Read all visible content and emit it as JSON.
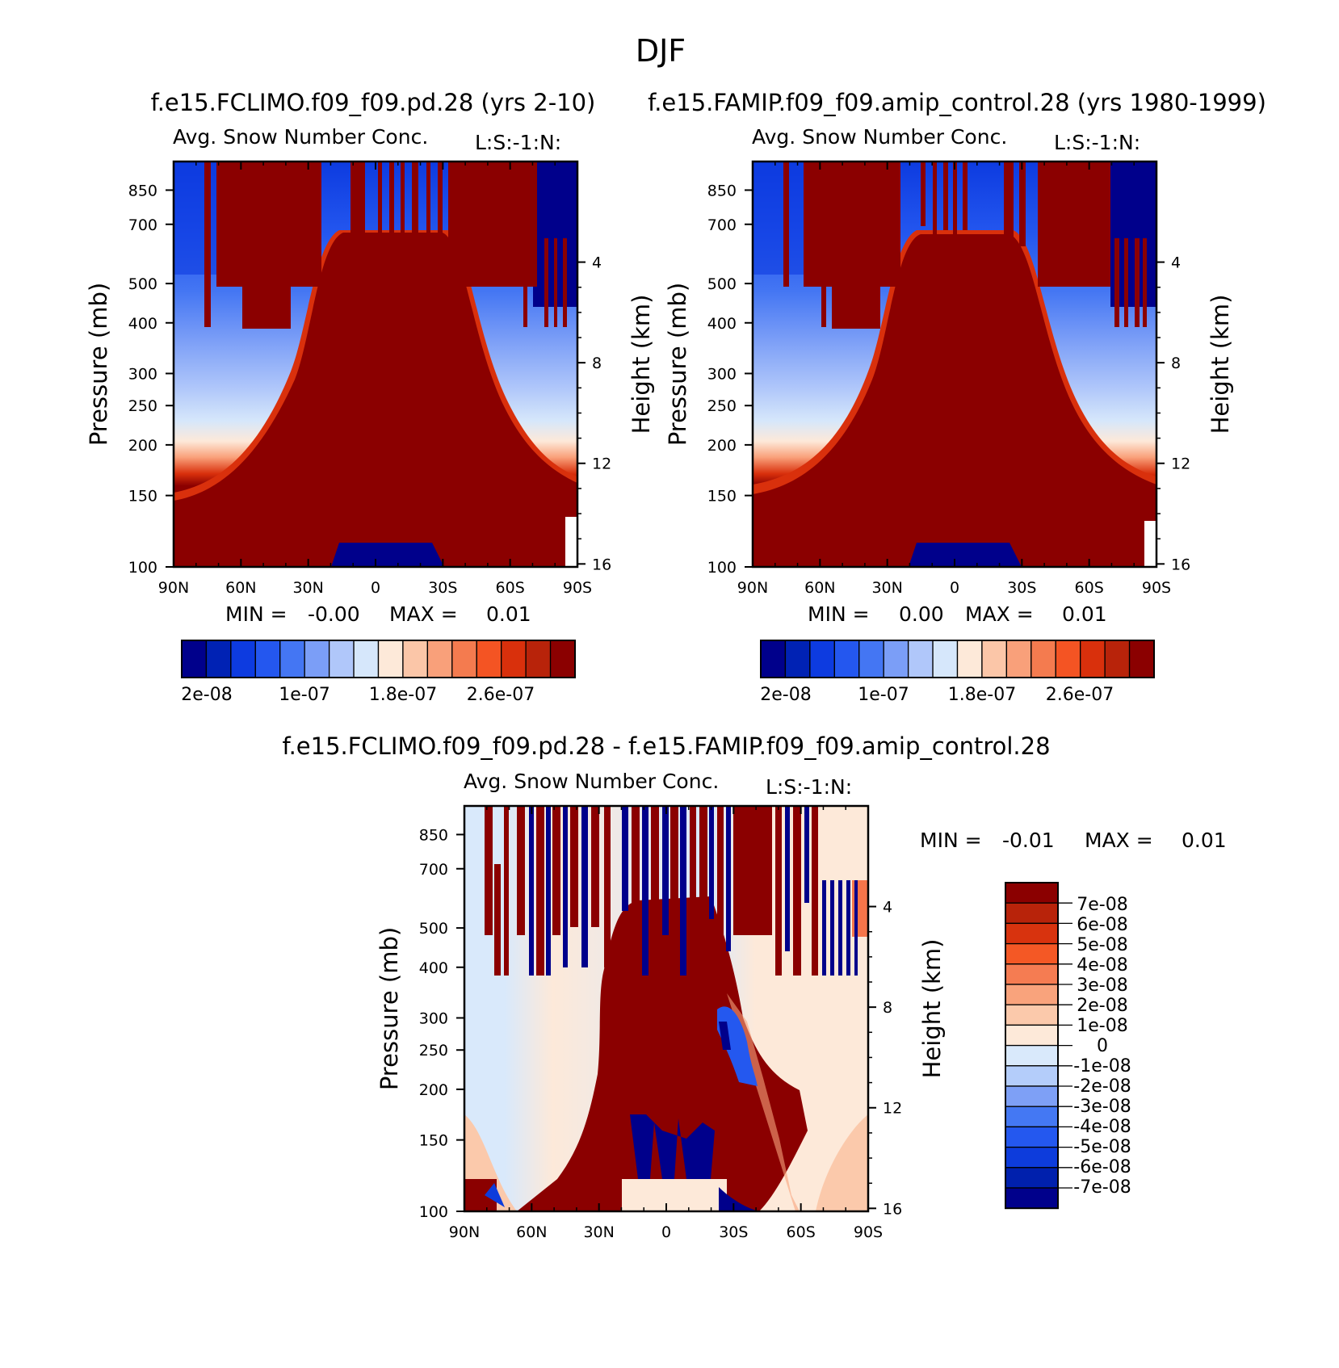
{
  "page_title": "DJF",
  "colors": {
    "cb_seq": [
      "#00008b",
      "#0022b4",
      "#0d3be0",
      "#2457ef",
      "#4476f3",
      "#7b9ef7",
      "#b0c7fa",
      "#d6e7fb",
      "#fde9d9",
      "#fbc6a8",
      "#f9a07a",
      "#f47b4f",
      "#f45423",
      "#d9300c",
      "#b8230a",
      "#8b0000"
    ],
    "cb_div": [
      "#00008b",
      "#0020ad",
      "#0d3cdc",
      "#2458ef",
      "#4478f3",
      "#7ea0f6",
      "#b4cdfa",
      "#d9e9fb",
      "#fde9d9",
      "#fbc9ab",
      "#f9a37c",
      "#f57c52",
      "#f45825",
      "#d8330e",
      "#b8230a",
      "#8b0000"
    ],
    "high": "#8b0000",
    "low": "#00008b"
  },
  "chart_data": [
    {
      "id": "panel_a",
      "type": "heatmap",
      "title": "f.e15.FCLIMO.f09_f09.pd.28 (yrs 2-10)",
      "subtitle_left": "Avg. Snow Number Conc.",
      "subtitle_right": "L:S:-1:N:",
      "ylabel": "Pressure (mb)",
      "y2label": "Height (km)",
      "xticks": [
        "90N",
        "60N",
        "30N",
        "0",
        "30S",
        "60S",
        "90S"
      ],
      "yticks": [
        100,
        150,
        200,
        250,
        300,
        400,
        500,
        700,
        850
      ],
      "y2ticks": [
        16,
        12,
        8,
        4
      ],
      "ylim": [
        1000,
        100
      ],
      "xlim": [
        "90N",
        "90S"
      ],
      "min_label": "MIN =",
      "min_value": "-0.00",
      "max_label": "MAX =",
      "max_value": "0.01",
      "colorbar_labels": [
        "2e-08",
        "1e-07",
        "1.8e-07",
        "2.6e-07"
      ]
    },
    {
      "id": "panel_b",
      "type": "heatmap",
      "title": "f.e15.FAMIP.f09_f09.amip_control.28 (yrs 1980-1999)",
      "subtitle_left": "Avg. Snow Number Conc.",
      "subtitle_right": "L:S:-1:N:",
      "ylabel": "Pressure (mb)",
      "y2label": "Height (km)",
      "xticks": [
        "90N",
        "60N",
        "30N",
        "0",
        "30S",
        "60S",
        "90S"
      ],
      "yticks": [
        100,
        150,
        200,
        250,
        300,
        400,
        500,
        700,
        850
      ],
      "y2ticks": [
        16,
        12,
        8,
        4
      ],
      "ylim": [
        1000,
        100
      ],
      "xlim": [
        "90N",
        "90S"
      ],
      "min_label": "MIN =",
      "min_value": "0.00",
      "max_label": "MAX =",
      "max_value": "0.01",
      "colorbar_labels": [
        "2e-08",
        "1e-07",
        "1.8e-07",
        "2.6e-07"
      ]
    },
    {
      "id": "panel_c",
      "type": "heatmap",
      "title": "f.e15.FCLIMO.f09_f09.pd.28 - f.e15.FAMIP.f09_f09.amip_control.28",
      "subtitle_left": "Avg. Snow Number Conc.",
      "subtitle_right": "L:S:-1:N:",
      "ylabel": "Pressure (mb)",
      "y2label": "Height (km)",
      "xticks": [
        "90N",
        "60N",
        "30N",
        "0",
        "30S",
        "60S",
        "90S"
      ],
      "yticks": [
        100,
        150,
        200,
        250,
        300,
        400,
        500,
        700,
        850
      ],
      "y2ticks": [
        16,
        12,
        8,
        4
      ],
      "ylim": [
        1000,
        100
      ],
      "xlim": [
        "90N",
        "90S"
      ],
      "min_label": "MIN =",
      "min_value": "-0.01",
      "max_label": "MAX =",
      "max_value": "0.01",
      "colorbar_labels": [
        "7e-08",
        "6e-08",
        "5e-08",
        "4e-08",
        "3e-08",
        "2e-08",
        "1e-08",
        "0",
        "-1e-08",
        "-2e-08",
        "-3e-08",
        "-4e-08",
        "-5e-08",
        "-6e-08",
        "-7e-08"
      ]
    }
  ]
}
